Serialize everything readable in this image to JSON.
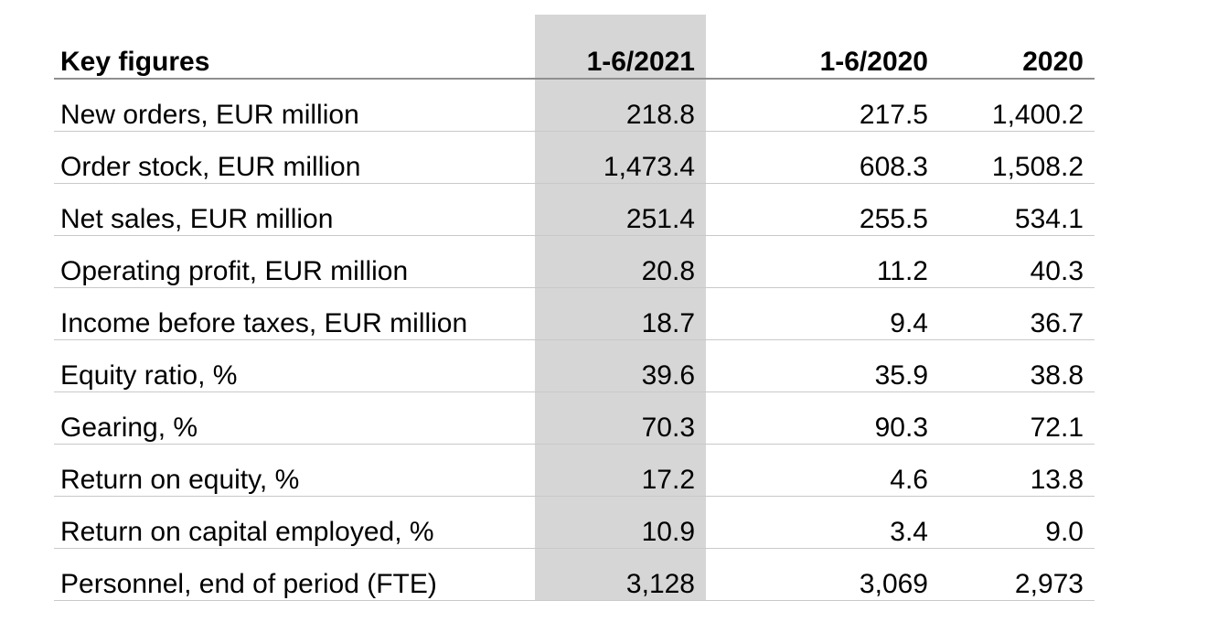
{
  "table": {
    "title_column_label": "Key figures",
    "column_headers": [
      "1-6/2021",
      "1-6/2020",
      "2020"
    ],
    "highlighted_column": "1-6/2021",
    "rows": [
      {
        "label": "New orders, EUR million",
        "values": [
          "218.8",
          "217.5",
          "1,400.2"
        ]
      },
      {
        "label": "Order stock, EUR million",
        "values": [
          "1,473.4",
          "608.3",
          "1,508.2"
        ]
      },
      {
        "label": "Net sales, EUR million",
        "values": [
          "251.4",
          "255.5",
          "534.1"
        ]
      },
      {
        "label": "Operating profit, EUR million",
        "values": [
          "20.8",
          "11.2",
          "40.3"
        ]
      },
      {
        "label": "Income before taxes, EUR million",
        "values": [
          "18.7",
          "9.4",
          "36.7"
        ]
      },
      {
        "label": "Equity ratio, %",
        "values": [
          "39.6",
          "35.9",
          "38.8"
        ]
      },
      {
        "label": "Gearing, %",
        "values": [
          "70.3",
          "90.3",
          "72.1"
        ]
      },
      {
        "label": "Return on equity, %",
        "values": [
          "17.2",
          "4.6",
          "13.8"
        ]
      },
      {
        "label": "Return on capital employed, %",
        "values": [
          "10.9",
          "3.4",
          "9.0"
        ]
      },
      {
        "label": "Personnel, end of period (FTE)",
        "values": [
          "3,128",
          "3,069",
          "2,973"
        ]
      }
    ],
    "colors": {
      "highlight_bg": "#d6d6d6",
      "header_rule": "#8f8f8f",
      "row_rule": "#c9c9c9",
      "text": "#000000",
      "page_bg": "#ffffff"
    }
  }
}
